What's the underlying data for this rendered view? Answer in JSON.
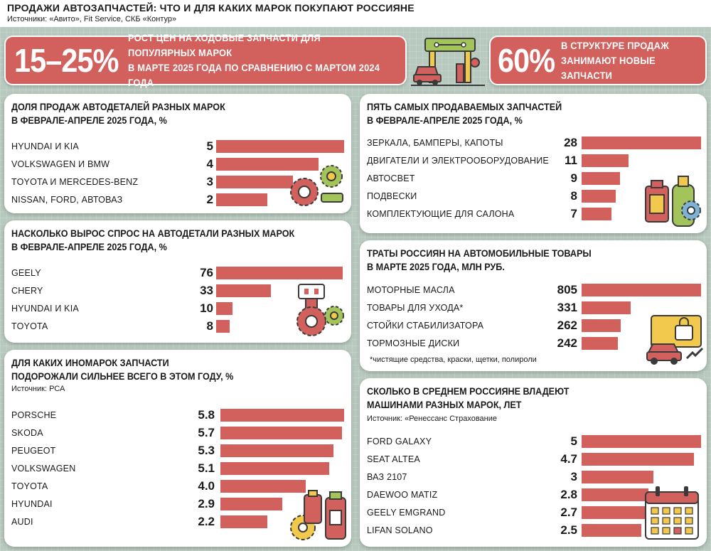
{
  "header": {
    "title": "ПРОДАЖИ АВТОЗАПЧАСТЕЙ: ЧТО И ДЛЯ КАКИХ МАРОК ПОКУПАЮТ РОССИЯНЕ",
    "sources": "Источники: «Авито», Fit Service, СКБ «Контур»"
  },
  "banners": [
    {
      "big": "15–25%",
      "text": "РОСТ ЦЕН НА ХОДОВЫЕ ЗАПЧАСТИ ДЛЯ ПОПУЛЯРНЫХ МАРОК\nВ МАРТЕ 2025 ГОДА ПО СРАВНЕНИЮ С МАРТОМ 2024 ГОДА"
    },
    {
      "big": "60%",
      "text": "В СТРУКТУРЕ ПРОДАЖ\nЗАНИМАЮТ НОВЫЕ ЗАПЧАСТИ"
    }
  ],
  "colors": {
    "bar": "#d2605c",
    "background": "#b8c9bf",
    "accent_yellow": "#f2c94c",
    "accent_green": "#a3c45b",
    "accent_blue": "#7fb3d5"
  },
  "icons": [
    "gears-icon",
    "car-parts-icon",
    "oil-bottle-gear-icon",
    "car-lock-icon",
    "gear-bottle-icon",
    "calendar-icon",
    "car-service-icon"
  ],
  "chart_data": [
    {
      "id": "brand-share",
      "type": "bar",
      "orientation": "horizontal",
      "title": "ДОЛЯ ПРОДАЖ АВТОДЕТАЛЕЙ РАЗНЫХ МАРОК\nВ ФЕВРАЛЕ-АПРЕЛЕ 2025 ГОДА, %",
      "categories": [
        "HYUNDAI И KIA",
        "VOLKSWAGEN И BMW",
        "TOYOTA И MERCEDES-BENZ",
        "NISSAN, FORD, АВТОВАЗ"
      ],
      "values": [
        5,
        4,
        3,
        2
      ],
      "value_labels": [
        "5",
        "4",
        "3",
        "2"
      ]
    },
    {
      "id": "demand-growth",
      "type": "bar",
      "orientation": "horizontal",
      "title": "НАСКОЛЬКО ВЫРОС СПРОС НА АВТОДЕТАЛИ РАЗНЫХ МАРОК\nВ ФЕВРАЛЕ-АПРЕЛЕ 2025 ГОДА, %",
      "categories": [
        "GEELY",
        "CHERY",
        "HYUNDAI И KIA",
        "TOYOTA"
      ],
      "values": [
        76,
        33,
        10,
        8
      ],
      "value_labels": [
        "76",
        "33",
        "10",
        "8"
      ]
    },
    {
      "id": "price-growth",
      "type": "bar",
      "orientation": "horizontal",
      "title": "ДЛЯ КАКИХ ИНОМАРОК ЗАПЧАСТИ\nПОДОРОЖАЛИ СИЛЬНЕЕ ВСЕГО В ЭТОМ ГОДУ, %",
      "source": "Источник: РСА",
      "categories": [
        "PORSCHE",
        "SKODA",
        "PEUGEOT",
        "VOLKSWAGEN",
        "TOYOTA",
        "HYUNDAI",
        "AUDI"
      ],
      "values": [
        5.8,
        5.7,
        5.3,
        5.1,
        4.0,
        2.9,
        2.2
      ],
      "value_labels": [
        "5.8",
        "5.7",
        "5.3",
        "5.1",
        "4.0",
        "2.9",
        "2.2"
      ]
    },
    {
      "id": "top-parts",
      "type": "bar",
      "orientation": "horizontal",
      "title": "ПЯТЬ САМЫХ ПРОДАВАЕМЫХ ЗАПЧАСТЕЙ\nВ ФЕВРАЛЕ-АПРЕЛЕ 2025 ГОДА, %",
      "categories": [
        "ЗЕРКАЛА, БАМПЕРЫ, КАПОТЫ",
        "ДВИГАТЕЛИ И ЭЛЕКТРООБОРУДОВАНИЕ",
        "АВТОСВЕТ",
        "ПОДВЕСКИ",
        "КОМПЛЕКТУЮЩИЕ ДЛЯ САЛОНА"
      ],
      "values": [
        28,
        11,
        9,
        8,
        7
      ],
      "value_labels": [
        "28",
        "11",
        "9",
        "8",
        "7"
      ]
    },
    {
      "id": "spending",
      "type": "bar",
      "orientation": "horizontal",
      "title": "ТРАТЫ РОССИЯН НА АВТОМОБИЛЬНЫЕ ТОВАРЫ\nВ МАРТЕ 2025 ГОДА, МЛН РУБ.",
      "note": "*чистящие средства, краски, щетки, полироли",
      "categories": [
        "МОТОРНЫЕ МАСЛА",
        "ТОВАРЫ ДЛЯ УХОДА*",
        "СТОЙКИ СТАБИЛИЗАТОРА",
        "ТОРМОЗНЫЕ ДИСКИ"
      ],
      "values": [
        805,
        331,
        262,
        242
      ],
      "value_labels": [
        "805",
        "331",
        "262",
        "242"
      ]
    },
    {
      "id": "ownership",
      "type": "bar",
      "orientation": "horizontal",
      "title": "СКОЛЬКО В СРЕДНЕМ РОССИЯНЕ ВЛАДЕЮТ\nМАШИНАМИ РАЗНЫХ МАРОК, ЛЕТ",
      "source": "Источник: «Ренессанс Страхование",
      "categories": [
        "FORD GALAXY",
        "SEAT ALTEA",
        "ВАЗ 2107",
        "DAEWOO MATIZ",
        "GEELY EMGRAND",
        "LIFAN SOLANO"
      ],
      "values": [
        5,
        4.7,
        3,
        2.8,
        2.7,
        2.5
      ],
      "value_labels": [
        "5",
        "4.7",
        "3",
        "2.8",
        "2.7",
        "2.5"
      ]
    }
  ]
}
